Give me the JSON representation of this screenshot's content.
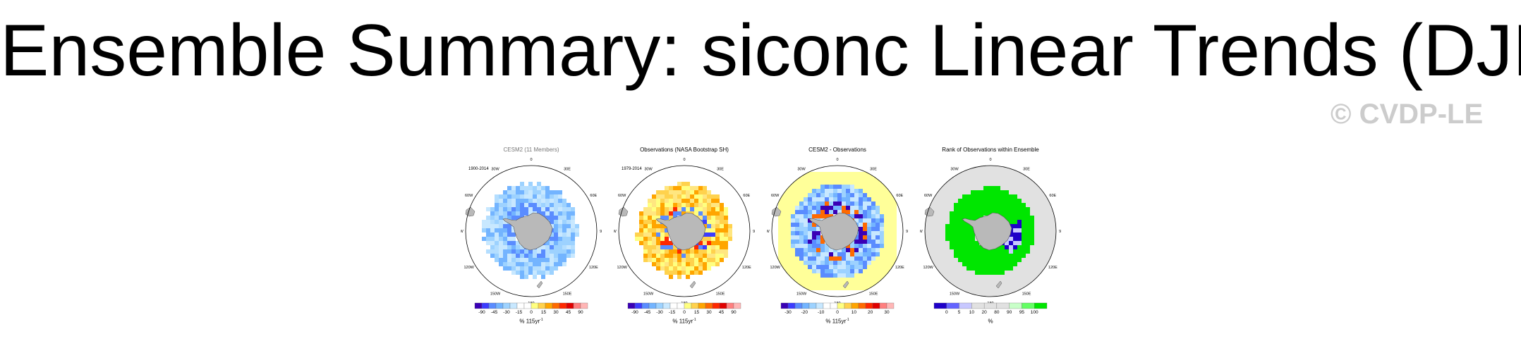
{
  "title": "Ensemble Summary: siconc Linear Trends (DJF)",
  "watermark": "© CVDP-LE",
  "colors": {
    "ocean": "#ffffff",
    "land": "#b9b9b9",
    "coast": "#555555"
  },
  "lon_labels": [
    "0",
    "30E",
    "60E",
    "90E",
    "120E",
    "150E",
    "180",
    "150W",
    "120W",
    "90W",
    "60W",
    "30W"
  ],
  "panels": [
    {
      "title": "CESM2 (11 Members)",
      "period": "1900-2014",
      "units": "% 115yr",
      "units_sup": "-1",
      "colorbar_labels": [
        "-90",
        "-45",
        "-30",
        "-15",
        "0",
        "15",
        "30",
        "45",
        "90"
      ],
      "colorbar_colors": [
        "#3a00b5",
        "#3c3cff",
        "#5a8cff",
        "#73b4ff",
        "#9dd2ff",
        "#c8e8ff",
        "#ffffff",
        "#ffffff",
        "#ffff80",
        "#ffd24d",
        "#ffa500",
        "#ff6a00",
        "#ff2800",
        "#e00000",
        "#ff7f7f",
        "#ffb6b6"
      ]
    },
    {
      "title": "Observations (NASA Bootstrap SH)",
      "period": "1979-2014",
      "units": "% 115yr",
      "units_sup": "-1",
      "colorbar_labels": [
        "-90",
        "-45",
        "-30",
        "-15",
        "0",
        "15",
        "30",
        "45",
        "90"
      ],
      "colorbar_colors": [
        "#3a00b5",
        "#3c3cff",
        "#5a8cff",
        "#73b4ff",
        "#9dd2ff",
        "#c8e8ff",
        "#ffffff",
        "#ffffff",
        "#ffff80",
        "#ffd24d",
        "#ffa500",
        "#ff6a00",
        "#ff2800",
        "#e00000",
        "#ff7f7f",
        "#ffb6b6"
      ]
    },
    {
      "title": "CESM2 - Observations",
      "period": "",
      "units": "% 115yr",
      "units_sup": "-1",
      "colorbar_labels": [
        "-30",
        "-20",
        "-10",
        "0",
        "10",
        "20",
        "30"
      ],
      "colorbar_colors": [
        "#3a00b5",
        "#3c3cff",
        "#5a8cff",
        "#73b4ff",
        "#9dd2ff",
        "#c8e8ff",
        "#ffffff",
        "#ffffff",
        "#ffff80",
        "#ffd24d",
        "#ffa500",
        "#ff6a00",
        "#ff2800",
        "#e00000",
        "#ff7f7f",
        "#ffb6b6"
      ]
    },
    {
      "title": "Rank of Observations within Ensemble",
      "period": "",
      "units": "%",
      "units_sup": "",
      "colorbar_labels": [
        "0",
        "5",
        "10",
        "20",
        "80",
        "90",
        "95",
        "100"
      ],
      "colorbar_colors": [
        "#1e00c8",
        "#6464ff",
        "#c8c8ff",
        "#e1e1e1",
        "#e1e1e1",
        "#e1e1e1",
        "#c8ffc8",
        "#64ff64",
        "#00e600"
      ]
    }
  ]
}
